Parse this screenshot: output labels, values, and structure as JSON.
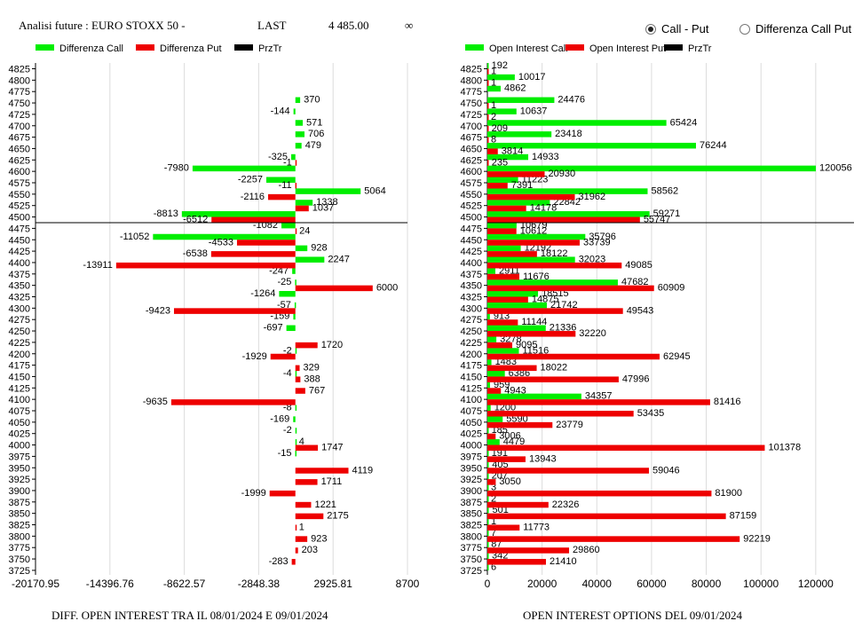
{
  "header": {
    "title": "Analisi future : EURO STOXX 50 -",
    "last_label": "LAST",
    "last_value": "4 485.00",
    "change_symbol": "∞",
    "radio_call_put": "Call - Put",
    "radio_diff": "Differenza Call Put",
    "selected": "call_put"
  },
  "footer": {
    "left": "DIFF. OPEN INTEREST TRA IL 08/01/2024 E 09/01/2024",
    "right": "OPEN INTEREST OPTIONS DEL 09/01/2024"
  },
  "colors": {
    "green": "#00ee00",
    "red": "#ee0000",
    "black": "#000000"
  },
  "chart_data": [
    {
      "type": "bar",
      "orientation": "horizontal",
      "legend": [
        "Differenza Call",
        "Differenza Put",
        "PrzTr"
      ],
      "legend_placement": "top",
      "x_ticks": [
        "-20170.95",
        "-14396.76",
        "-8622.57",
        "-2848.38",
        "2925.81",
        "8700"
      ],
      "xlim": [
        -20170.95,
        8700
      ],
      "grid": true,
      "prztr_between": [
        "4500",
        "4475"
      ],
      "categories": [
        "4825",
        "4800",
        "4775",
        "4750",
        "4725",
        "4700",
        "4675",
        "4650",
        "4625",
        "4600",
        "4575",
        "4550",
        "4525",
        "4500",
        "4475",
        "4450",
        "4425",
        "4400",
        "4375",
        "4350",
        "4325",
        "4300",
        "4275",
        "4250",
        "4225",
        "4200",
        "4175",
        "4150",
        "4125",
        "4100",
        "4075",
        "4050",
        "4025",
        "4000",
        "3975",
        "3950",
        "3925",
        "3900",
        "3875",
        "3850",
        "3825",
        "3800",
        "3775",
        "3750",
        "3725"
      ],
      "series": [
        {
          "name": "Differenza Call",
          "values": [
            null,
            null,
            null,
            370,
            -144,
            571,
            706,
            479,
            -325,
            -7980,
            -2257,
            5064,
            1338,
            -8813,
            -1082,
            -11052,
            928,
            2247,
            -247,
            -25,
            -1264,
            -57,
            -159,
            -697,
            null,
            -2,
            null,
            -4,
            null,
            null,
            -8,
            -169,
            -2,
            4,
            -15,
            null,
            null,
            null,
            null,
            null,
            null,
            null,
            null,
            null,
            null
          ]
        },
        {
          "name": "Differenza Put",
          "values": [
            null,
            null,
            null,
            null,
            null,
            null,
            null,
            null,
            -1,
            null,
            -11,
            -2116,
            1037,
            -6512,
            24,
            -4533,
            -6538,
            -13911,
            null,
            6000,
            null,
            -9423,
            null,
            null,
            1720,
            -1929,
            329,
            388,
            767,
            -9635,
            null,
            null,
            null,
            1747,
            null,
            4119,
            1711,
            -1999,
            1221,
            2175,
            1,
            923,
            203,
            -283,
            null
          ],
          "value_labels": {
            "17": "-13911"
          }
        }
      ],
      "xlabel": "DIFF. OPEN INTEREST TRA IL 08/01/2024 E 09/01/2024"
    },
    {
      "type": "bar",
      "orientation": "horizontal",
      "legend": [
        "Open Interest Call",
        "Open Interest Put",
        "PrzTr"
      ],
      "legend_placement": "top",
      "x_ticks": [
        "0",
        "20000",
        "40000",
        "60000",
        "80000",
        "100000",
        "120000"
      ],
      "xlim": [
        0,
        134000
      ],
      "grid": true,
      "prztr_between": [
        "4500",
        "4475"
      ],
      "categories": [
        "4825",
        "4800",
        "4775",
        "4750",
        "4725",
        "4700",
        "4675",
        "4650",
        "4625",
        "4600",
        "4575",
        "4550",
        "4525",
        "4500",
        "4475",
        "4450",
        "4425",
        "4400",
        "4375",
        "4350",
        "4325",
        "4300",
        "4275",
        "4250",
        "4225",
        "4200",
        "4175",
        "4150",
        "4125",
        "4100",
        "4075",
        "4050",
        "4025",
        "4000",
        "3975",
        "3950",
        "3925",
        "3900",
        "3875",
        "3850",
        "3825",
        "3800",
        "3775",
        "3750",
        "3725"
      ],
      "series": [
        {
          "name": "Open Interest Call",
          "values": [
            192,
            10017,
            4862,
            24476,
            10637,
            65424,
            23418,
            76244,
            14933,
            120056,
            11223,
            58562,
            22842,
            59271,
            10679,
            35796,
            12192,
            32023,
            2911,
            47682,
            18515,
            21742,
            913,
            21336,
            3278,
            11516,
            1483,
            6386,
            959,
            34357,
            1200,
            5590,
            185,
            4479,
            191,
            405,
            207,
            3,
            2,
            501,
            1,
            7,
            87,
            342,
            6
          ]
        },
        {
          "name": "Open Interest Put",
          "values": [
            1,
            1,
            null,
            1,
            2,
            209,
            8,
            3814,
            235,
            20930,
            7391,
            31962,
            14178,
            55747,
            10612,
            33739,
            18122,
            49085,
            11676,
            60909,
            14875,
            49543,
            11144,
            32220,
            9095,
            62945,
            18022,
            47996,
            4943,
            81416,
            53435,
            23779,
            3006,
            101378,
            13943,
            59046,
            3050,
            81900,
            22326,
            87159,
            11773,
            92219,
            29860,
            21410,
            null
          ]
        }
      ],
      "xlabel": "OPEN INTEREST OPTIONS DEL 09/01/2024"
    }
  ]
}
